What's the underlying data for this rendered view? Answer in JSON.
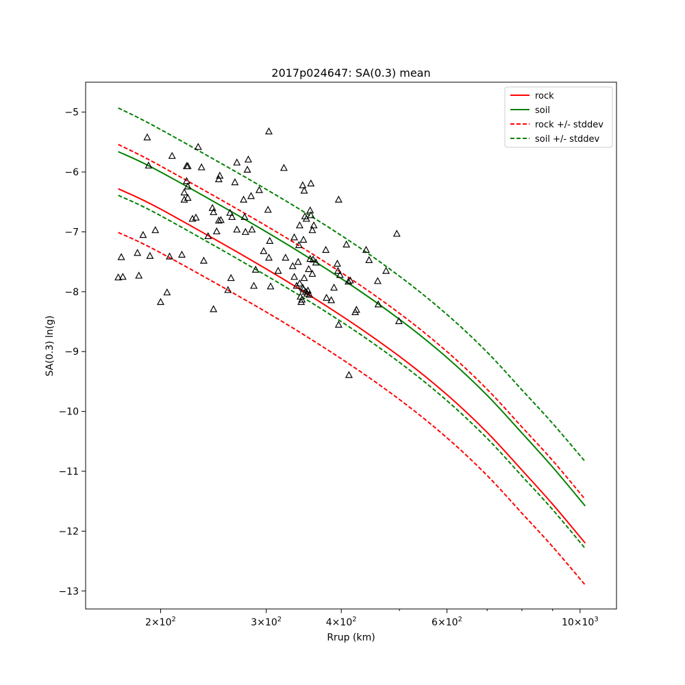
{
  "chart_data": {
    "type": "line",
    "title": "2017p024647: SA(0.3) mean",
    "xlabel": "Rrup (km)",
    "ylabel": "SA(0.3) ln(g)",
    "x_scale": "log",
    "xlim": [
      150,
      1150
    ],
    "ylim": [
      -13.3,
      -4.5
    ],
    "x_ticks_major": [
      {
        "value": 200,
        "base": "2",
        "exp": "2"
      },
      {
        "value": 300,
        "base": "3",
        "exp": "2"
      },
      {
        "value": 400,
        "base": "4",
        "exp": "2"
      },
      {
        "value": 600,
        "base": "6",
        "exp": "2"
      },
      {
        "value": 1000,
        "base": "10",
        "exp": "3"
      }
    ],
    "x_ticks_minor": [
      500,
      700,
      800,
      900
    ],
    "y_ticks": [
      -13,
      -12,
      -11,
      -10,
      -9,
      -8,
      -7,
      -6,
      -5
    ],
    "grid": false,
    "legend_position": "top-right",
    "series": [
      {
        "name": "rock",
        "color": "#ff0000",
        "dash": "solid",
        "x": [
          170,
          200,
          300,
          400,
          500,
          600,
          700,
          800,
          900,
          1020
        ],
        "y": [
          -6.28,
          -6.62,
          -7.62,
          -8.4,
          -9.08,
          -9.72,
          -10.35,
          -10.98,
          -11.55,
          -12.2
        ]
      },
      {
        "name": "soil",
        "color": "#008000",
        "dash": "solid",
        "x": [
          170,
          200,
          300,
          400,
          500,
          600,
          700,
          800,
          900,
          1020
        ],
        "y": [
          -5.66,
          -6.0,
          -7.0,
          -7.78,
          -8.46,
          -9.1,
          -9.73,
          -10.36,
          -10.93,
          -11.58
        ]
      },
      {
        "name": "rock +/- stddev",
        "color": "#ff0000",
        "dash": "dashed",
        "x": [
          170,
          200,
          300,
          400,
          500,
          600,
          700,
          800,
          900,
          1020
        ],
        "y": [
          -5.54,
          -5.9,
          -6.9,
          -7.68,
          -8.36,
          -9.0,
          -9.63,
          -10.26,
          -10.82,
          -11.47
        ]
      },
      {
        "name": "",
        "color": "#ff0000",
        "dash": "dashed",
        "x": [
          170,
          200,
          300,
          400,
          500,
          600,
          700,
          800,
          900,
          1020
        ],
        "y": [
          -7.01,
          -7.35,
          -8.34,
          -9.12,
          -9.8,
          -10.44,
          -11.07,
          -11.7,
          -12.26,
          -12.9
        ]
      },
      {
        "name": "soil +/- stddev",
        "color": "#008000",
        "dash": "dashed",
        "x": [
          170,
          200,
          300,
          400,
          500,
          600,
          700,
          800,
          900,
          1020
        ],
        "y": [
          -4.93,
          -5.29,
          -6.29,
          -7.06,
          -7.74,
          -8.38,
          -9.01,
          -9.64,
          -10.2,
          -10.84
        ]
      },
      {
        "name": "",
        "color": "#008000",
        "dash": "dashed",
        "x": [
          170,
          200,
          300,
          400,
          500,
          600,
          700,
          800,
          900,
          1020
        ],
        "y": [
          -6.39,
          -6.73,
          -7.73,
          -8.5,
          -9.18,
          -9.82,
          -10.45,
          -11.08,
          -11.64,
          -12.29
        ]
      }
    ],
    "observations": {
      "marker": "triangle",
      "color": "#000000",
      "points": [
        [
          170,
          -7.76
        ],
        [
          172,
          -7.42
        ],
        [
          173,
          -7.75
        ],
        [
          183,
          -7.35
        ],
        [
          184,
          -7.73
        ],
        [
          187,
          -7.05
        ],
        [
          190,
          -5.42
        ],
        [
          191,
          -5.89
        ],
        [
          192,
          -7.4
        ],
        [
          196,
          -6.97
        ],
        [
          200,
          -8.17
        ],
        [
          205,
          -8.01
        ],
        [
          207,
          -7.41
        ],
        [
          209,
          -5.73
        ],
        [
          217,
          -7.38
        ],
        [
          219,
          -6.46
        ],
        [
          219,
          -6.34
        ],
        [
          221,
          -6.15
        ],
        [
          221,
          -5.9
        ],
        [
          222,
          -5.9
        ],
        [
          222,
          -6.24
        ],
        [
          222,
          -6.43
        ],
        [
          226,
          -6.78
        ],
        [
          229,
          -6.76
        ],
        [
          231,
          -5.58
        ],
        [
          234,
          -5.92
        ],
        [
          236,
          -7.48
        ],
        [
          240,
          -7.07
        ],
        [
          244,
          -6.6
        ],
        [
          245,
          -6.67
        ],
        [
          245,
          -8.29
        ],
        [
          248,
          -6.99
        ],
        [
          250,
          -6.81
        ],
        [
          250,
          -6.12
        ],
        [
          251,
          -6.06
        ],
        [
          252,
          -6.8
        ],
        [
          259,
          -7.97
        ],
        [
          261,
          -6.68
        ],
        [
          262,
          -7.77
        ],
        [
          263,
          -6.75
        ],
        [
          266,
          -6.17
        ],
        [
          268,
          -5.84
        ],
        [
          268,
          -6.96
        ],
        [
          275,
          -6.46
        ],
        [
          276,
          -6.75
        ],
        [
          277,
          -7.0
        ],
        [
          279,
          -5.96
        ],
        [
          280,
          -5.79
        ],
        [
          283,
          -6.4
        ],
        [
          284,
          -6.96
        ],
        [
          286,
          -7.9
        ],
        [
          288,
          -7.63
        ],
        [
          292,
          -6.3
        ],
        [
          297,
          -7.32
        ],
        [
          302,
          -6.63
        ],
        [
          303,
          -5.32
        ],
        [
          303,
          -7.43
        ],
        [
          304,
          -7.15
        ],
        [
          305,
          -7.91
        ],
        [
          314,
          -7.65
        ],
        [
          321,
          -5.93
        ],
        [
          323,
          -7.43
        ],
        [
          332,
          -7.57
        ],
        [
          334,
          -7.75
        ],
        [
          334,
          -7.09
        ],
        [
          337,
          -7.9
        ],
        [
          339,
          -7.5
        ],
        [
          340,
          -7.22
        ],
        [
          341,
          -6.89
        ],
        [
          341,
          -7.86
        ],
        [
          342,
          -8.08
        ],
        [
          343,
          -8.17
        ],
        [
          344,
          -8.13
        ],
        [
          345,
          -6.22
        ],
        [
          345,
          -7.93
        ],
        [
          346,
          -7.13
        ],
        [
          346,
          -7.96
        ],
        [
          347,
          -7.77
        ],
        [
          347,
          -6.31
        ],
        [
          348,
          -6.74
        ],
        [
          349,
          -8.0
        ],
        [
          350,
          -6.78
        ],
        [
          351,
          -8.03
        ],
        [
          352,
          -7.98
        ],
        [
          353,
          -7.62
        ],
        [
          354,
          -8.05
        ],
        [
          355,
          -7.45
        ],
        [
          355,
          -6.64
        ],
        [
          356,
          -6.72
        ],
        [
          356,
          -6.19
        ],
        [
          358,
          -6.97
        ],
        [
          358,
          -7.7
        ],
        [
          359,
          -7.46
        ],
        [
          360,
          -6.89
        ],
        [
          363,
          -7.51
        ],
        [
          377,
          -7.3
        ],
        [
          378,
          -8.1
        ],
        [
          385,
          -8.14
        ],
        [
          389,
          -7.93
        ],
        [
          394,
          -7.53
        ],
        [
          395,
          -7.65
        ],
        [
          396,
          -8.55
        ],
        [
          396,
          -6.46
        ],
        [
          398,
          -7.72
        ],
        [
          408,
          -7.21
        ],
        [
          411,
          -7.83
        ],
        [
          412,
          -9.39
        ],
        [
          414,
          -7.81
        ],
        [
          422,
          -8.34
        ],
        [
          424,
          -8.3
        ],
        [
          440,
          -7.3
        ],
        [
          445,
          -7.47
        ],
        [
          460,
          -7.82
        ],
        [
          461,
          -8.21
        ],
        [
          475,
          -7.65
        ],
        [
          495,
          -7.03
        ],
        [
          499,
          -8.49
        ]
      ]
    }
  }
}
